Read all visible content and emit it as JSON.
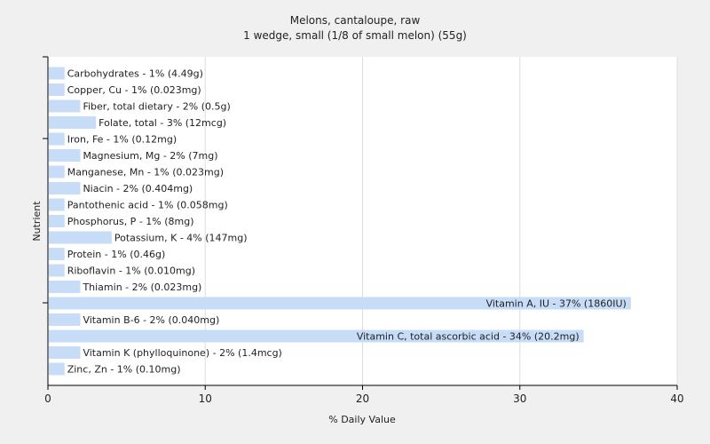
{
  "chart_data": {
    "type": "bar",
    "orientation": "horizontal",
    "title": "Melons, cantaloupe, raw",
    "subtitle": "1 wedge, small (1/8 of small melon) (55g)",
    "xlabel": "% Daily Value",
    "ylabel": "Nutrient",
    "xlim": [
      0,
      40
    ],
    "xticks": [
      "0",
      "10",
      "20",
      "30",
      "40"
    ],
    "grid": true,
    "bar_color": "#c6dcf7",
    "categories": [
      "Carbohydrates",
      "Copper, Cu",
      "Fiber, total dietary",
      "Folate, total",
      "Iron, Fe",
      "Magnesium, Mg",
      "Manganese, Mn",
      "Niacin",
      "Pantothenic acid",
      "Phosphorus, P",
      "Potassium, K",
      "Protein",
      "Riboflavin",
      "Thiamin",
      "Vitamin A, IU",
      "Vitamin B-6",
      "Vitamin C, total ascorbic acid",
      "Vitamin K (phylloquinone)",
      "Zinc, Zn"
    ],
    "values": [
      1,
      1,
      2,
      3,
      1,
      2,
      1,
      2,
      1,
      1,
      4,
      1,
      1,
      2,
      37,
      2,
      34,
      2,
      1
    ],
    "labels": [
      "Carbohydrates - 1% (4.49g)",
      "Copper, Cu - 1% (0.023mg)",
      "Fiber, total dietary - 2% (0.5g)",
      "Folate, total - 3% (12mcg)",
      "Iron, Fe - 1% (0.12mg)",
      "Magnesium, Mg - 2% (7mg)",
      "Manganese, Mn - 1% (0.023mg)",
      "Niacin - 2% (0.404mg)",
      "Pantothenic acid - 1% (0.058mg)",
      "Phosphorus, P - 1% (8mg)",
      "Potassium, K - 4% (147mg)",
      "Protein - 1% (0.46g)",
      "Riboflavin - 1% (0.010mg)",
      "Thiamin - 2% (0.023mg)",
      "Vitamin A, IU - 37% (1860IU)",
      "Vitamin B-6 - 2% (0.040mg)",
      "Vitamin C, total ascorbic acid - 34% (20.2mg)",
      "Vitamin K (phylloquinone) - 2% (1.4mcg)",
      "Zinc, Zn - 1% (0.10mg)"
    ]
  }
}
